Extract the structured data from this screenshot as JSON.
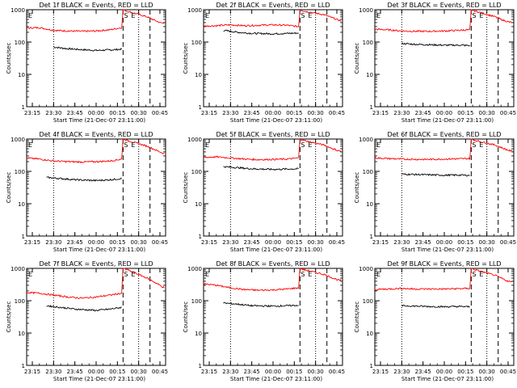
{
  "chart_data": [
    {
      "type": "line",
      "title": "Det 1f BLACK = Events, RED = LLD",
      "xlabel": "Start Time (21-Dec-07 23:11:00)",
      "ylabel": "Counts/sec",
      "xlim": [
        "23:11",
        "00:49"
      ],
      "ylim": [
        1,
        1000
      ],
      "yscale": "log",
      "xticks": [
        "23:15",
        "23:30",
        "23:45",
        "00:00",
        "00:15",
        "00:30",
        "00:45"
      ],
      "yticks": [
        "1",
        "10",
        "100",
        "1000"
      ],
      "annotations": [
        "E",
        "S",
        "E"
      ],
      "series": [
        {
          "color": "#000000",
          "x": [
            "23:30",
            "23:40",
            "23:50",
            "00:00",
            "00:10",
            "00:18"
          ],
          "values": [
            70,
            62,
            58,
            55,
            57,
            60
          ]
        },
        {
          "color": "#ff0000",
          "x": [
            "23:11",
            "23:20",
            "23:30",
            "23:40",
            "23:50",
            "00:00",
            "00:10",
            "00:18",
            "00:19",
            "00:22",
            "00:36",
            "00:40",
            "00:45",
            "00:48"
          ],
          "values": [
            270,
            280,
            230,
            220,
            215,
            220,
            240,
            280,
            1000,
            900,
            600,
            500,
            400,
            380
          ]
        }
      ]
    },
    {
      "type": "line",
      "title": "Det 2f BLACK = Events, RED = LLD",
      "xlabel": "Start Time (21-Dec-07 23:11:00)",
      "ylabel": "Counts/sec",
      "xlim": [
        "23:11",
        "00:49"
      ],
      "ylim": [
        1,
        1000
      ],
      "yscale": "log",
      "xticks": [
        "23:15",
        "23:30",
        "23:45",
        "00:00",
        "00:15",
        "00:30",
        "00:45"
      ],
      "yticks": [
        "1",
        "10",
        "100",
        "1000"
      ],
      "annotations": [
        "E",
        "S",
        "E"
      ],
      "series": [
        {
          "color": "#000000",
          "x": [
            "23:25",
            "23:35",
            "23:45",
            "00:00",
            "00:10",
            "00:18"
          ],
          "values": [
            230,
            200,
            185,
            180,
            185,
            190
          ]
        },
        {
          "color": "#ff0000",
          "x": [
            "23:11",
            "23:20",
            "23:30",
            "23:40",
            "23:50",
            "00:00",
            "00:10",
            "00:18",
            "00:19",
            "00:22",
            "00:36",
            "00:40",
            "00:45",
            "00:48"
          ],
          "values": [
            310,
            320,
            340,
            320,
            330,
            340,
            330,
            300,
            1000,
            900,
            700,
            600,
            500,
            450
          ]
        }
      ]
    },
    {
      "type": "line",
      "title": "Det 3f BLACK = Events, RED = LLD",
      "xlabel": "Start Time (21-Dec-07 23:11:00)",
      "ylabel": "Counts/sec",
      "xlim": [
        "23:11",
        "00:49"
      ],
      "ylim": [
        1,
        1000
      ],
      "yscale": "log",
      "xticks": [
        "23:15",
        "23:30",
        "23:45",
        "00:00",
        "00:15",
        "00:30",
        "00:45"
      ],
      "yticks": [
        "1",
        "10",
        "100",
        "1000"
      ],
      "annotations": [
        "E",
        "S",
        "E"
      ],
      "series": [
        {
          "color": "#000000",
          "x": [
            "23:30",
            "23:40",
            "23:50",
            "00:00",
            "00:10",
            "00:18"
          ],
          "values": [
            90,
            85,
            82,
            80,
            80,
            78
          ]
        },
        {
          "color": "#ff0000",
          "x": [
            "23:11",
            "23:20",
            "23:30",
            "23:40",
            "23:50",
            "00:00",
            "00:10",
            "00:18",
            "00:19",
            "00:22",
            "00:36",
            "00:40",
            "00:45",
            "00:48"
          ],
          "values": [
            250,
            240,
            220,
            215,
            215,
            220,
            230,
            240,
            1000,
            900,
            600,
            500,
            420,
            400
          ]
        }
      ]
    },
    {
      "type": "line",
      "title": "Det 4f BLACK = Events, RED = LLD",
      "xlabel": "Start Time (21-Dec-07 23:11:00)",
      "ylabel": "Counts/sec",
      "xlim": [
        "23:11",
        "00:49"
      ],
      "ylim": [
        1,
        1000
      ],
      "yscale": "log",
      "xticks": [
        "23:15",
        "23:30",
        "23:45",
        "00:00",
        "00:15",
        "00:30",
        "00:45"
      ],
      "yticks": [
        "1",
        "10",
        "100",
        "1000"
      ],
      "annotations": [
        "E",
        "S",
        "E"
      ],
      "series": [
        {
          "color": "#000000",
          "x": [
            "23:25",
            "23:35",
            "23:45",
            "00:00",
            "00:10",
            "00:18"
          ],
          "values": [
            65,
            60,
            55,
            52,
            55,
            60
          ]
        },
        {
          "color": "#ff0000",
          "x": [
            "23:11",
            "23:20",
            "23:30",
            "23:40",
            "23:50",
            "00:00",
            "00:10",
            "00:18",
            "00:19",
            "00:22",
            "00:36",
            "00:40",
            "00:45",
            "00:48"
          ],
          "values": [
            260,
            240,
            210,
            200,
            195,
            200,
            210,
            240,
            1000,
            900,
            600,
            500,
            400,
            350
          ]
        }
      ]
    },
    {
      "type": "line",
      "title": "Det 5f BLACK = Events, RED = LLD",
      "xlabel": "Start Time (21-Dec-07 23:11:00)",
      "ylabel": "Counts/sec",
      "xlim": [
        "23:11",
        "00:49"
      ],
      "ylim": [
        1,
        1000
      ],
      "yscale": "log",
      "xticks": [
        "23:15",
        "23:30",
        "23:45",
        "00:00",
        "00:15",
        "00:30",
        "00:45"
      ],
      "yticks": [
        "1",
        "10",
        "100",
        "1000"
      ],
      "annotations": [
        "E",
        "S",
        "E"
      ],
      "series": [
        {
          "color": "#000000",
          "x": [
            "23:25",
            "23:35",
            "23:45",
            "00:00",
            "00:10",
            "00:18"
          ],
          "values": [
            140,
            130,
            120,
            115,
            118,
            120
          ]
        },
        {
          "color": "#ff0000",
          "x": [
            "23:11",
            "23:20",
            "23:30",
            "23:40",
            "23:50",
            "00:00",
            "00:10",
            "00:18",
            "00:19",
            "00:22",
            "00:36",
            "00:40",
            "00:45",
            "00:48"
          ],
          "values": [
            270,
            280,
            260,
            240,
            230,
            235,
            240,
            260,
            1000,
            900,
            650,
            550,
            450,
            420
          ]
        }
      ]
    },
    {
      "type": "line",
      "title": "Det 6f BLACK = Events, RED = LLD",
      "xlabel": "Start Time (21-Dec-07 23:11:00)",
      "ylabel": "Counts/sec",
      "xlim": [
        "23:11",
        "00:49"
      ],
      "ylim": [
        1,
        1000
      ],
      "yscale": "log",
      "xticks": [
        "23:15",
        "23:30",
        "23:45",
        "00:00",
        "00:15",
        "00:30",
        "00:45"
      ],
      "yticks": [
        "1",
        "10",
        "100",
        "1000"
      ],
      "annotations": [
        "E",
        "S",
        "E"
      ],
      "series": [
        {
          "color": "#000000",
          "x": [
            "23:30",
            "23:40",
            "23:50",
            "00:00",
            "00:10",
            "00:18"
          ],
          "values": [
            82,
            80,
            78,
            76,
            77,
            75
          ]
        },
        {
          "color": "#ff0000",
          "x": [
            "23:11",
            "23:20",
            "23:30",
            "23:40",
            "23:50",
            "00:00",
            "00:10",
            "00:18",
            "00:19",
            "00:22",
            "00:36",
            "00:40",
            "00:45",
            "00:48"
          ],
          "values": [
            260,
            250,
            240,
            235,
            235,
            240,
            245,
            250,
            1000,
            900,
            650,
            550,
            450,
            420
          ]
        }
      ]
    },
    {
      "type": "line",
      "title": "Det 7f BLACK = Events, RED = LLD",
      "xlabel": "Start Time (21-Dec-07 23:11:00)",
      "ylabel": "Counts/sec",
      "xlim": [
        "23:11",
        "00:49"
      ],
      "ylim": [
        1,
        1000
      ],
      "yscale": "log",
      "xticks": [
        "23:15",
        "23:30",
        "23:45",
        "00:00",
        "00:15",
        "00:30",
        "00:45"
      ],
      "yticks": [
        "1",
        "10",
        "100",
        "1000"
      ],
      "annotations": [
        "E",
        "S",
        "E"
      ],
      "series": [
        {
          "color": "#000000",
          "x": [
            "23:25",
            "23:35",
            "23:45",
            "00:00",
            "00:10",
            "00:18"
          ],
          "values": [
            70,
            62,
            55,
            50,
            55,
            62
          ]
        },
        {
          "color": "#ff0000",
          "x": [
            "23:11",
            "23:20",
            "23:30",
            "23:40",
            "23:50",
            "00:00",
            "00:10",
            "00:18",
            "00:19",
            "00:22",
            "00:36",
            "00:40",
            "00:45",
            "00:48"
          ],
          "values": [
            180,
            170,
            150,
            130,
            120,
            130,
            150,
            170,
            1000,
            900,
            500,
            400,
            300,
            250
          ]
        }
      ]
    },
    {
      "type": "line",
      "title": "Det 8f BLACK = Events, RED = LLD",
      "xlabel": "Start Time (21-Dec-07 23:11:00)",
      "ylabel": "Counts/sec",
      "xlim": [
        "23:11",
        "00:49"
      ],
      "ylim": [
        1,
        1000
      ],
      "yscale": "log",
      "xticks": [
        "23:15",
        "23:30",
        "23:45",
        "00:00",
        "00:15",
        "00:30",
        "00:45"
      ],
      "yticks": [
        "1",
        "10",
        "100",
        "1000"
      ],
      "annotations": [
        "E",
        "S",
        "E"
      ],
      "series": [
        {
          "color": "#000000",
          "x": [
            "23:25",
            "23:35",
            "23:45",
            "00:00",
            "00:10",
            "00:18"
          ],
          "values": [
            85,
            78,
            70,
            68,
            70,
            72
          ]
        },
        {
          "color": "#ff0000",
          "x": [
            "23:11",
            "23:20",
            "23:30",
            "23:40",
            "23:50",
            "00:00",
            "00:10",
            "00:18",
            "00:19",
            "00:22",
            "00:36",
            "00:40",
            "00:45",
            "00:48"
          ],
          "values": [
            330,
            300,
            250,
            220,
            210,
            215,
            230,
            250,
            1000,
            900,
            650,
            550,
            450,
            420
          ]
        }
      ]
    },
    {
      "type": "line",
      "title": "Det 9f BLACK = Events, RED = LLD",
      "xlabel": "Start Time (21-Dec-07 23:11:00)",
      "ylabel": "Counts/sec",
      "xlim": [
        "23:11",
        "00:49"
      ],
      "ylim": [
        1,
        1000
      ],
      "yscale": "log",
      "xticks": [
        "23:15",
        "23:30",
        "23:45",
        "00:00",
        "00:15",
        "00:30",
        "00:45"
      ],
      "yticks": [
        "1",
        "10",
        "100",
        "1000"
      ],
      "annotations": [
        "E",
        "S",
        "E"
      ],
      "series": [
        {
          "color": "#000000",
          "x": [
            "23:30",
            "23:40",
            "23:50",
            "00:00",
            "00:10",
            "00:18"
          ],
          "values": [
            70,
            68,
            66,
            65,
            66,
            65
          ]
        },
        {
          "color": "#ff0000",
          "x": [
            "23:11",
            "23:20",
            "23:30",
            "23:40",
            "23:50",
            "00:00",
            "00:10",
            "00:18",
            "00:19",
            "00:22",
            "00:36",
            "00:40",
            "00:45",
            "00:48"
          ],
          "values": [
            220,
            230,
            240,
            230,
            230,
            230,
            235,
            240,
            1000,
            900,
            600,
            500,
            400,
            380
          ]
        }
      ]
    }
  ],
  "markers": {
    "dotted": [
      "23:30",
      "00:30"
    ],
    "dashed": [
      "00:19",
      "00:38"
    ]
  }
}
